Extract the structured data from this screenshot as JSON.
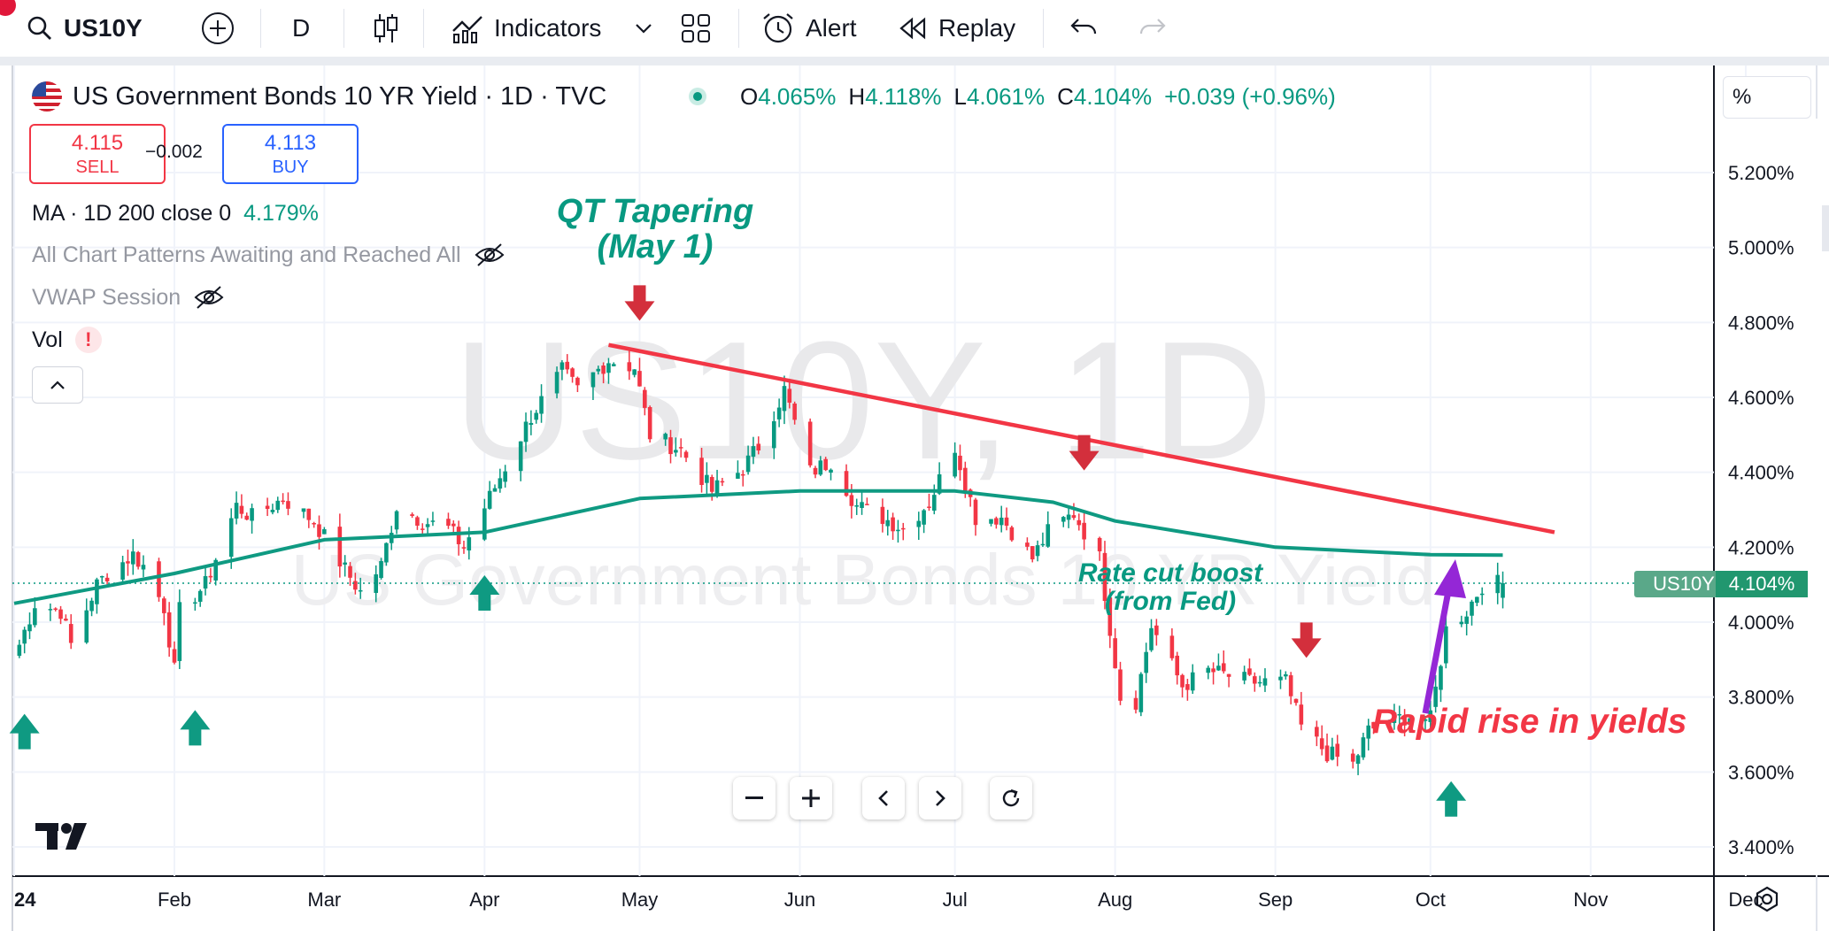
{
  "toolbar": {
    "symbol": "US10Y",
    "interval": "D",
    "indicators_label": "Indicators",
    "alert_label": "Alert",
    "replay_label": "Replay",
    "icons": [
      "search-icon",
      "plus-circle-icon",
      "candles-icon",
      "indicators-icon",
      "chevron-down-icon",
      "layout-grid-icon",
      "alert-clock-icon",
      "replay-icon",
      "undo-icon",
      "redo-icon"
    ]
  },
  "legend": {
    "title": "US Government Bonds 10 YR Yield · 1D · TVC",
    "open_label": "O",
    "open": "4.065%",
    "high_label": "H",
    "high": "4.118%",
    "low_label": "L",
    "low": "4.061%",
    "close_label": "C",
    "close": "4.104%",
    "change": "+0.039 (+0.96%)"
  },
  "trade": {
    "sell_price": "4.115",
    "sell_label": "SELL",
    "spread": "−0.002",
    "buy_price": "4.113",
    "buy_label": "BUY"
  },
  "indicators": {
    "ma_label": "MA · 1D 200 close 0",
    "ma_value": "4.179%",
    "patterns_label": "All Chart Patterns Awaiting and Reached All",
    "vwap_label": "VWAP Session",
    "vol_label": "Vol",
    "vol_warning": "!"
  },
  "price_scale_mode": "%",
  "watermark": {
    "symbol": "US10Y, 1D",
    "name": "US Government Bonds 10 YR Yield"
  },
  "annotations": {
    "qt_tapering": "QT Tapering\n(May 1)",
    "rate_cut": "Rate cut boost\n(from Fed)",
    "rapid_rise": "Rapid rise in yields"
  },
  "price_tag": {
    "symbol": "US10Y",
    "value": "4.104%"
  },
  "colors": {
    "up": "#089981",
    "down": "#f23645",
    "ma": "#0f9a82",
    "trendline": "#f23645",
    "purple_arrow": "#9427d6",
    "red_arrow": "#d32f3c",
    "green_arrow": "#0f9a82"
  },
  "chart_data": {
    "type": "candlestick",
    "title": "US Government Bonds 10 YR Yield · 1D · TVC",
    "y_unit": "%",
    "ylim": [
      3.3,
      5.35
    ],
    "y_ticks": [
      "5.200%",
      "5.000%",
      "4.800%",
      "4.600%",
      "4.400%",
      "4.200%",
      "4.000%",
      "3.800%",
      "3.600%",
      "3.400%"
    ],
    "x_ticks": [
      "2024",
      "Feb",
      "Mar",
      "Apr",
      "May",
      "Jun",
      "Jul",
      "Aug",
      "Sep",
      "Oct",
      "Nov",
      "Dec"
    ],
    "grid": true,
    "close_series": [
      [
        "2024-01-02",
        3.94
      ],
      [
        "2024-01-05",
        4.05
      ],
      [
        "2024-01-10",
        4.03
      ],
      [
        "2024-01-12",
        3.94
      ],
      [
        "2024-01-17",
        4.1
      ],
      [
        "2024-01-19",
        4.13
      ],
      [
        "2024-01-24",
        4.18
      ],
      [
        "2024-01-26",
        4.15
      ],
      [
        "2024-01-30",
        4.04
      ],
      [
        "2024-02-01",
        3.87
      ],
      [
        "2024-02-02",
        4.03
      ],
      [
        "2024-02-07",
        4.1
      ],
      [
        "2024-02-13",
        4.31
      ],
      [
        "2024-02-16",
        4.28
      ],
      [
        "2024-02-22",
        4.33
      ],
      [
        "2024-02-28",
        4.27
      ],
      [
        "2024-03-05",
        4.14
      ],
      [
        "2024-03-08",
        4.08
      ],
      [
        "2024-03-12",
        4.15
      ],
      [
        "2024-03-15",
        4.31
      ],
      [
        "2024-03-20",
        4.27
      ],
      [
        "2024-03-25",
        4.25
      ],
      [
        "2024-03-28",
        4.2
      ],
      [
        "2024-04-03",
        4.36
      ],
      [
        "2024-04-10",
        4.55
      ],
      [
        "2024-04-16",
        4.67
      ],
      [
        "2024-04-19",
        4.62
      ],
      [
        "2024-04-25",
        4.7
      ],
      [
        "2024-04-30",
        4.68
      ],
      [
        "2024-05-03",
        4.5
      ],
      [
        "2024-05-09",
        4.46
      ],
      [
        "2024-05-15",
        4.35
      ],
      [
        "2024-05-21",
        4.41
      ],
      [
        "2024-05-24",
        4.47
      ],
      [
        "2024-05-29",
        4.62
      ],
      [
        "2024-06-03",
        4.4
      ],
      [
        "2024-06-07",
        4.43
      ],
      [
        "2024-06-12",
        4.31
      ],
      [
        "2024-06-17",
        4.28
      ],
      [
        "2024-06-21",
        4.25
      ],
      [
        "2024-06-26",
        4.32
      ],
      [
        "2024-07-01",
        4.47
      ],
      [
        "2024-07-05",
        4.28
      ],
      [
        "2024-07-10",
        4.28
      ],
      [
        "2024-07-16",
        4.17
      ],
      [
        "2024-07-19",
        4.24
      ],
      [
        "2024-07-24",
        4.29
      ],
      [
        "2024-07-29",
        4.17
      ],
      [
        "2024-08-02",
        3.8
      ],
      [
        "2024-08-05",
        3.79
      ],
      [
        "2024-08-08",
        3.99
      ],
      [
        "2024-08-14",
        3.83
      ],
      [
        "2024-08-19",
        3.87
      ],
      [
        "2024-08-22",
        3.86
      ],
      [
        "2024-08-27",
        3.84
      ],
      [
        "2024-09-03",
        3.84
      ],
      [
        "2024-09-06",
        3.72
      ],
      [
        "2024-09-11",
        3.65
      ],
      [
        "2024-09-16",
        3.62
      ],
      [
        "2024-09-19",
        3.71
      ],
      [
        "2024-09-24",
        3.74
      ],
      [
        "2024-09-27",
        3.75
      ],
      [
        "2024-10-01",
        3.74
      ],
      [
        "2024-10-04",
        3.98
      ],
      [
        "2024-10-08",
        4.03
      ],
      [
        "2024-10-11",
        4.1
      ],
      [
        "2024-10-15",
        4.104
      ]
    ],
    "series": [
      {
        "name": "MA · 1D 200 close 0",
        "type": "line",
        "values": [
          [
            "2024-01-01",
            4.05
          ],
          [
            "2024-02-01",
            4.13
          ],
          [
            "2024-03-01",
            4.22
          ],
          [
            "2024-04-01",
            4.24
          ],
          [
            "2024-05-01",
            4.33
          ],
          [
            "2024-06-01",
            4.35
          ],
          [
            "2024-07-01",
            4.35
          ],
          [
            "2024-07-20",
            4.32
          ],
          [
            "2024-08-01",
            4.27
          ],
          [
            "2024-09-01",
            4.2
          ],
          [
            "2024-10-01",
            4.18
          ],
          [
            "2024-10-15",
            4.179
          ]
        ]
      }
    ],
    "last_price": 4.104,
    "trendline": {
      "from": [
        "2024-04-25",
        4.74
      ],
      "to": [
        "2024-10-25",
        4.24
      ]
    },
    "markers": [
      {
        "kind": "down",
        "date": "2024-05-01",
        "price": 4.8
      },
      {
        "kind": "down",
        "date": "2024-07-26",
        "price": 4.4
      },
      {
        "kind": "down",
        "date": "2024-09-07",
        "price": 3.9
      },
      {
        "kind": "up",
        "date": "2024-01-03",
        "price": 3.76
      },
      {
        "kind": "up",
        "date": "2024-02-05",
        "price": 3.77
      },
      {
        "kind": "up",
        "date": "2024-04-01",
        "price": 4.13
      },
      {
        "kind": "up",
        "date": "2024-10-05",
        "price": 3.58
      }
    ]
  }
}
